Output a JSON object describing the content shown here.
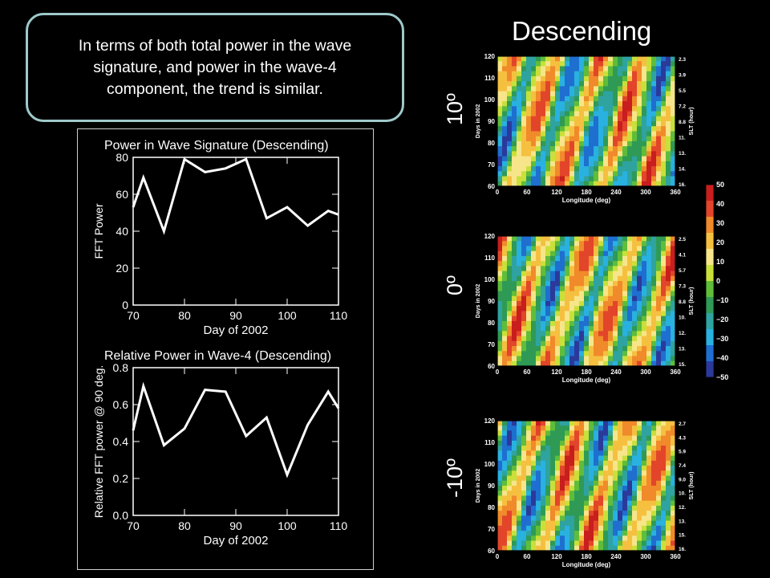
{
  "callout": {
    "text": "In terms of both total power in the wave signature, and power in the wave-4 component, the trend is similar."
  },
  "slide_title": "Descending",
  "latitudes": [
    "10º",
    "0º",
    "-10º"
  ],
  "colors": {
    "background": "#000000",
    "callout_border": "#9ec9c9",
    "line": "#ffffff",
    "colorbar": [
      "#2b3a9a",
      "#1e6fd0",
      "#29b1e0",
      "#2fa3a0",
      "#2f9a55",
      "#5fbd3a",
      "#c9e03a",
      "#f7e58a",
      "#f5c040",
      "#f08a2a",
      "#e2452a",
      "#c81e1e"
    ]
  },
  "chart_data": [
    {
      "type": "line",
      "title": "Power in Wave Signature (Descending)",
      "xlabel": "Day of 2002",
      "ylabel": "FFT Power",
      "xlim": [
        70,
        110
      ],
      "ylim": [
        0,
        80
      ],
      "xticks": [
        "70",
        "80",
        "90",
        "100",
        "110"
      ],
      "yticks": [
        "0",
        "20",
        "40",
        "60",
        "80"
      ],
      "x": [
        70,
        72,
        76,
        80,
        84,
        88,
        92,
        96,
        100,
        104,
        108,
        110
      ],
      "y": [
        53,
        69,
        40,
        79,
        72,
        74,
        79,
        47,
        53,
        43,
        51,
        49
      ]
    },
    {
      "type": "line",
      "title": "Relative Power in Wave-4 (Descending)",
      "xlabel": "Day of 2002",
      "ylabel": "Relative FFT power @ 90 deg.",
      "xlim": [
        70,
        110
      ],
      "ylim": [
        0.0,
        0.8
      ],
      "xticks": [
        "70",
        "80",
        "90",
        "100",
        "110"
      ],
      "yticks": [
        "0.0",
        "0.2",
        "0.4",
        "0.6",
        "0.8"
      ],
      "x": [
        70,
        72,
        76,
        80,
        84,
        88,
        92,
        96,
        100,
        104,
        108,
        110
      ],
      "y": [
        0.46,
        0.7,
        0.38,
        0.47,
        0.68,
        0.67,
        0.43,
        0.53,
        0.22,
        0.49,
        0.67,
        0.58
      ]
    },
    {
      "type": "heatmap",
      "panel": "10º",
      "xlabel": "Longitude (deg)",
      "ylabel": "Days in 2002",
      "right_label": "SLT (hour)",
      "xticks": [
        "0",
        "60",
        "120",
        "180",
        "240",
        "300",
        "360"
      ],
      "yticks": [
        "60",
        "70",
        "80",
        "90",
        "100",
        "110",
        "120"
      ],
      "right_ticks": [
        "2.3",
        "3.9",
        "5.5",
        "7.2",
        "8.8",
        "11.",
        "13.",
        "14.",
        "16."
      ]
    },
    {
      "type": "heatmap",
      "panel": "0º",
      "xlabel": "Longitude (deg)",
      "ylabel": "Days in 2002",
      "right_label": "SLT (hour)",
      "xticks": [
        "0",
        "60",
        "120",
        "180",
        "240",
        "300",
        "360"
      ],
      "yticks": [
        "60",
        "70",
        "80",
        "90",
        "100",
        "110",
        "120"
      ],
      "right_ticks": [
        "2.5",
        "4.1",
        "5.7",
        "7.3",
        "8.8",
        "10.",
        "12.",
        "13.",
        "15."
      ]
    },
    {
      "type": "heatmap",
      "panel": "-10º",
      "xlabel": "Longitude (deg)",
      "ylabel": "Days in 2002",
      "right_label": "SLT (hour)",
      "xticks": [
        "0",
        "60",
        "120",
        "180",
        "240",
        "300",
        "360"
      ],
      "yticks": [
        "60",
        "70",
        "80",
        "90",
        "100",
        "110",
        "120"
      ],
      "right_ticks": [
        "2.7",
        "4.3",
        "5.9",
        "7.4",
        "9.0",
        "10.",
        "12.",
        "13.",
        "15.",
        "16."
      ]
    },
    {
      "type": "colorbar",
      "ticks": [
        "50",
        "40",
        "30",
        "20",
        "10",
        "0",
        "−10",
        "−20",
        "−30",
        "−40",
        "−50"
      ]
    }
  ]
}
